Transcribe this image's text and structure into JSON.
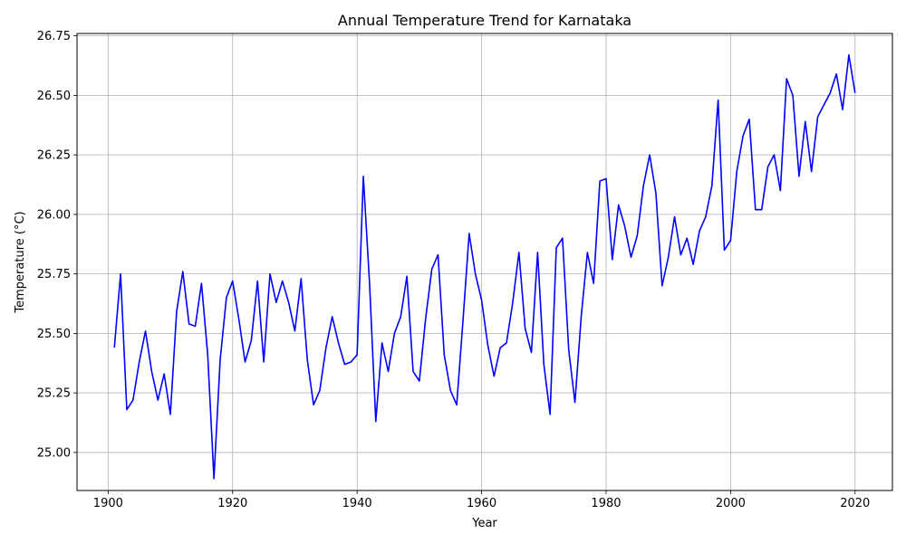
{
  "chart_data": {
    "type": "line",
    "title": "Annual Temperature Trend for Karnataka",
    "xlabel": "Year",
    "ylabel": "Temperature (°C)",
    "xlim": [
      1895,
      2026
    ],
    "ylim": [
      24.84,
      26.76
    ],
    "xticks": [
      1900,
      1920,
      1940,
      1960,
      1980,
      2000,
      2020
    ],
    "yticks": [
      25.0,
      25.25,
      25.5,
      25.75,
      26.0,
      26.25,
      26.5,
      26.75
    ],
    "grid": true,
    "line_color": "#0000ff",
    "series": [
      {
        "x": [
          1901,
          1902,
          1903,
          1904,
          1905,
          1906,
          1907,
          1908,
          1909,
          1910,
          1911,
          1912,
          1913,
          1914,
          1915,
          1916,
          1917,
          1918,
          1919,
          1920,
          1921,
          1922,
          1923,
          1924,
          1925,
          1926,
          1927,
          1928,
          1929,
          1930,
          1931,
          1932,
          1933,
          1934,
          1935,
          1936,
          1937,
          1938,
          1939,
          1940,
          1941,
          1942,
          1943,
          1944,
          1945,
          1946,
          1947,
          1948,
          1949,
          1950,
          1951,
          1952,
          1953,
          1954,
          1955,
          1956,
          1957,
          1958,
          1959,
          1960,
          1961,
          1962,
          1963,
          1964,
          1965,
          1966,
          1967,
          1968,
          1969,
          1970,
          1971,
          1972,
          1973,
          1974,
          1975,
          1976,
          1977,
          1978,
          1979,
          1980,
          1981,
          1982,
          1983,
          1984,
          1985,
          1986,
          1987,
          1988,
          1989,
          1990,
          1991,
          1992,
          1993,
          1994,
          1995,
          1996,
          1997,
          1998,
          1999,
          2000,
          2001,
          2002,
          2003,
          2004,
          2005,
          2006,
          2007,
          2008,
          2009,
          2010,
          2011,
          2012,
          2013,
          2014,
          2015,
          2016,
          2017,
          2018,
          2019,
          2020
        ],
        "values": [
          25.44,
          25.75,
          25.18,
          25.22,
          25.38,
          25.51,
          25.34,
          25.22,
          25.33,
          25.16,
          25.59,
          25.76,
          25.54,
          25.53,
          25.71,
          25.41,
          24.89,
          25.39,
          25.65,
          25.72,
          25.56,
          25.38,
          25.47,
          25.72,
          25.38,
          25.75,
          25.63,
          25.72,
          25.63,
          25.51,
          25.73,
          25.39,
          25.2,
          25.26,
          25.44,
          25.57,
          25.46,
          25.37,
          25.38,
          25.41,
          26.16,
          25.71,
          25.13,
          25.46,
          25.34,
          25.5,
          25.57,
          25.74,
          25.34,
          25.3,
          25.56,
          25.77,
          25.83,
          25.41,
          25.26,
          25.2,
          25.55,
          25.92,
          25.75,
          25.64,
          25.45,
          25.32,
          25.44,
          25.46,
          25.63,
          25.84,
          25.52,
          25.42,
          25.84,
          25.37,
          25.16,
          25.86,
          25.9,
          25.43,
          25.21,
          25.57,
          25.84,
          25.71,
          26.14,
          26.15,
          25.81,
          26.04,
          25.95,
          25.82,
          25.91,
          26.12,
          26.25,
          26.09,
          25.7,
          25.82,
          25.99,
          25.83,
          25.9,
          25.79,
          25.93,
          25.99,
          26.12,
          26.48,
          25.85,
          25.89,
          26.18,
          26.33,
          26.4,
          26.02,
          26.02,
          26.2,
          26.25,
          26.1,
          26.57,
          26.5,
          26.16,
          26.39,
          26.18,
          26.41,
          26.46,
          26.51,
          26.59,
          26.44,
          26.67,
          26.51
        ]
      }
    ]
  }
}
